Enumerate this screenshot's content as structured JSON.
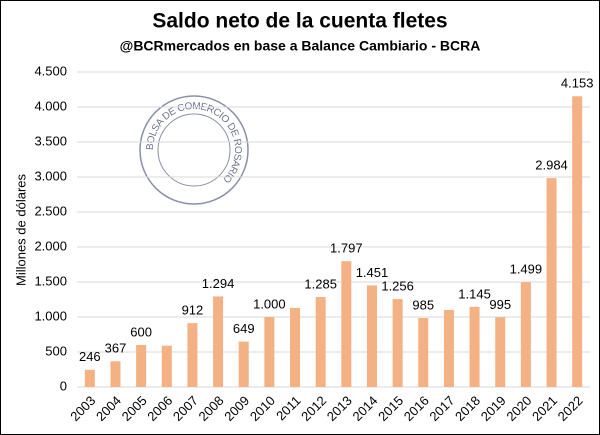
{
  "chart_data": {
    "type": "bar",
    "title": "Saldo neto de la cuenta fletes",
    "subtitle": "@BCRmercados en base a Balance Cambiario - BCRA",
    "y_label": "Millones de dólares",
    "logo_text": "BOLSA DE COMERCIO DE ROSARIO",
    "categories": [
      "2003",
      "2004",
      "2005",
      "2006",
      "2007",
      "2008",
      "2009",
      "2010",
      "2011",
      "2012",
      "2013",
      "2014",
      "2015",
      "2016",
      "2017",
      "2018",
      "2019",
      "2020",
      "2021",
      "2022"
    ],
    "values": [
      246,
      367,
      600,
      590,
      912,
      1294,
      649,
      1000,
      1130,
      1285,
      1797,
      1451,
      1256,
      985,
      1100,
      1145,
      995,
      1499,
      2984,
      4153
    ],
    "value_labels": [
      "246",
      "367",
      "600",
      null,
      "912",
      "1.294",
      "649",
      "1.000",
      null,
      "1.285",
      "1.797",
      "1.451",
      "1.256",
      "985",
      null,
      "1.145",
      "995",
      "1.499",
      "2.984",
      "4.153"
    ],
    "color": "#f4b183",
    "ylim": [
      0,
      4500
    ],
    "yticks": [
      0,
      500,
      {
        "value": 1000,
        "label": "1.000"
      },
      {
        "value": 1500,
        "label": "1.500"
      },
      {
        "value": 2000,
        "label": "2.000"
      },
      {
        "value": 2500,
        "label": "2.500"
      },
      {
        "value": 3000,
        "label": "3.000"
      },
      {
        "value": 3500,
        "label": "3.500"
      },
      {
        "value": 4000,
        "label": "4.000"
      },
      {
        "value": 4500,
        "label": "4.500"
      }
    ],
    "grid": true
  }
}
